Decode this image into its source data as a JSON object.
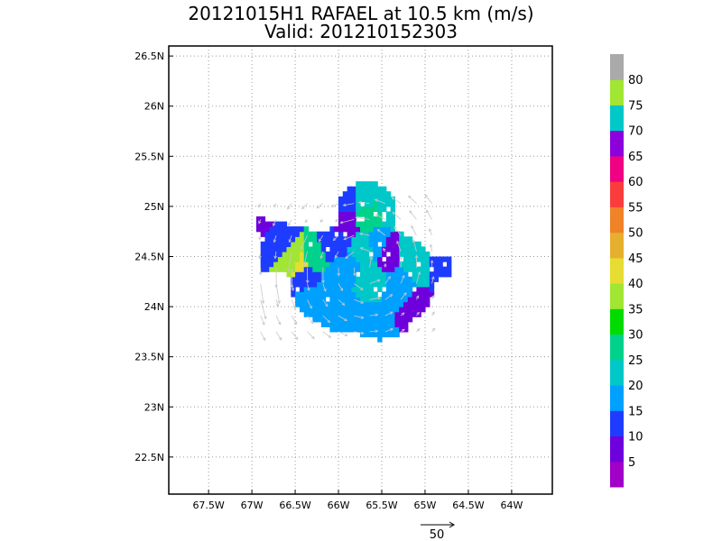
{
  "chart_data": {
    "type": "heatmap",
    "title": "20121015H1 RAFAEL at 10.5 km (m/s)",
    "subtitle": "Valid: 201210152303",
    "x_ticks": [
      "67.5W",
      "67W",
      "66.5W",
      "66W",
      "65.5W",
      "65W",
      "64.5W",
      "64W"
    ],
    "x_tick_values": [
      -67.5,
      -67,
      -66.5,
      -66,
      -65.5,
      -65,
      -64.5,
      -64
    ],
    "y_ticks": [
      "26.5N",
      "26N",
      "25.5N",
      "25N",
      "24.5N",
      "24N",
      "23.5N",
      "23N",
      "22.5N"
    ],
    "y_tick_values": [
      26.5,
      26,
      25.5,
      25,
      24.5,
      24,
      23.5,
      23,
      22.5
    ],
    "xlim": [
      -67.96,
      -63.53
    ],
    "ylim": [
      22.13,
      26.6
    ],
    "grid": true,
    "colorbar": {
      "labels": [
        "5",
        "10",
        "15",
        "20",
        "25",
        "30",
        "35",
        "40",
        "45",
        "50",
        "55",
        "60",
        "65",
        "70",
        "75",
        "80"
      ],
      "colors": [
        "#a000c8",
        "#6e00dc",
        "#1e3cff",
        "#00a0ff",
        "#00c8c8",
        "#00d28c",
        "#00dc00",
        "#a0e632",
        "#e6dc32",
        "#e6af2d",
        "#f08228",
        "#fa3c3c",
        "#f00082",
        "#8c00dc",
        "#00c8c8",
        "#a0e632",
        "#aaaaaa"
      ]
    },
    "reference_vector": {
      "value": "50"
    },
    "field": [
      {
        "lon": -66.95,
        "lat": 24.85,
        "speed": 8
      },
      {
        "lon": -66.75,
        "lat": 24.65,
        "speed": 13
      },
      {
        "lon": -66.55,
        "lat": 24.45,
        "speed": 37
      },
      {
        "lon": -66.45,
        "lat": 24.4,
        "speed": 43
      },
      {
        "lon": -66.35,
        "lat": 24.45,
        "speed": 28
      },
      {
        "lon": -66.4,
        "lat": 24.3,
        "speed": 13
      },
      {
        "lon": -66.3,
        "lat": 24.05,
        "speed": 18
      },
      {
        "lon": -66.1,
        "lat": 24.15,
        "speed": 15
      },
      {
        "lon": -66.05,
        "lat": 24.6,
        "speed": 13
      },
      {
        "lon": -65.95,
        "lat": 24.35,
        "speed": 15
      },
      {
        "lon": -65.95,
        "lat": 23.95,
        "speed": 18
      },
      {
        "lon": -65.95,
        "lat": 25.05,
        "speed": 14
      },
      {
        "lon": -65.95,
        "lat": 24.85,
        "speed": 6
      },
      {
        "lon": -65.75,
        "lat": 24.55,
        "speed": 20
      },
      {
        "lon": -65.75,
        "lat": 25.05,
        "speed": 20
      },
      {
        "lon": -65.7,
        "lat": 24.9,
        "speed": 26
      },
      {
        "lon": -65.65,
        "lat": 24.2,
        "speed": 20
      },
      {
        "lon": -65.6,
        "lat": 23.85,
        "speed": 15
      },
      {
        "lon": -65.55,
        "lat": 24.6,
        "speed": 18
      },
      {
        "lon": -65.45,
        "lat": 24.55,
        "speed": 6
      },
      {
        "lon": -65.4,
        "lat": 24.95,
        "speed": 20
      },
      {
        "lon": -65.35,
        "lat": 24.15,
        "speed": 16
      },
      {
        "lon": -65.25,
        "lat": 24.55,
        "speed": 20
      },
      {
        "lon": -65.15,
        "lat": 23.95,
        "speed": 8
      },
      {
        "lon": -65.1,
        "lat": 24.4,
        "speed": 22
      },
      {
        "lon": -64.9,
        "lat": 24.4,
        "speed": 13
      }
    ]
  }
}
